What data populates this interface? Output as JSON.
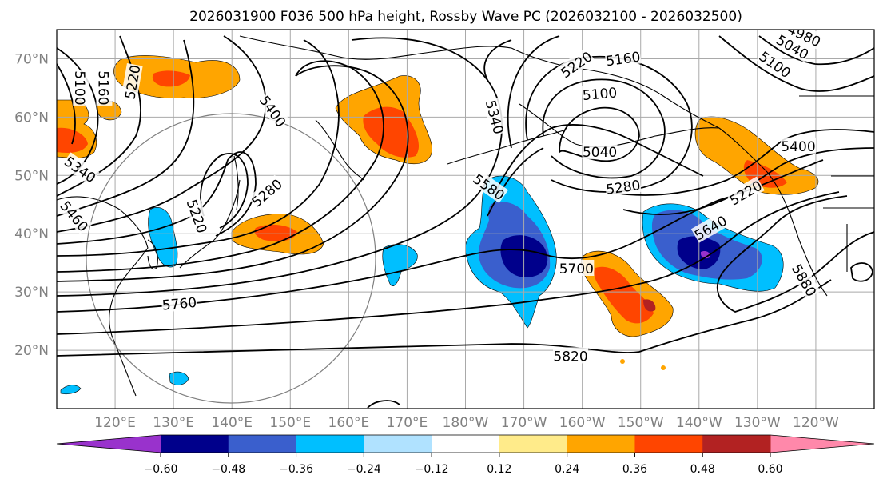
{
  "title": "2026031900 F036 500 hPa height, Rossby Wave PC (2026032100 - 2026032500)",
  "map": {
    "lon_range": [
      110,
      250
    ],
    "lat_range": [
      10,
      75
    ],
    "lat_labels": [
      {
        "lat": 70,
        "text": "70°N"
      },
      {
        "lat": 60,
        "text": "60°N"
      },
      {
        "lat": 50,
        "text": "50°N"
      },
      {
        "lat": 40,
        "text": "40°N"
      },
      {
        "lat": 30,
        "text": "30°N"
      },
      {
        "lat": 20,
        "text": "20°N"
      }
    ],
    "lon_labels": [
      {
        "lon": 120,
        "text": "120°E"
      },
      {
        "lon": 130,
        "text": "130°E"
      },
      {
        "lon": 140,
        "text": "140°E"
      },
      {
        "lon": 150,
        "text": "150°E"
      },
      {
        "lon": 160,
        "text": "160°E"
      },
      {
        "lon": 170,
        "text": "170°E"
      },
      {
        "lon": 180,
        "text": "180°W"
      },
      {
        "lon": 190,
        "text": "170°W"
      },
      {
        "lon": 200,
        "text": "160°W"
      },
      {
        "lon": 210,
        "text": "150°W"
      },
      {
        "lon": 220,
        "text": "140°W"
      },
      {
        "lon": 230,
        "text": "130°W"
      },
      {
        "lon": 240,
        "text": "120°W"
      }
    ]
  },
  "contours": {
    "units": "dam*10 (m)",
    "labels": [
      {
        "text": "5100",
        "lon": 114,
        "lat": 65,
        "rot": 90
      },
      {
        "text": "5160",
        "lon": 118,
        "lat": 65,
        "rot": 90
      },
      {
        "text": "5220",
        "lon": 123,
        "lat": 66,
        "rot": -80
      },
      {
        "text": "5400",
        "lon": 147,
        "lat": 61,
        "rot": 55
      },
      {
        "text": "5340",
        "lon": 114,
        "lat": 51,
        "rot": 35
      },
      {
        "text": "5460",
        "lon": 113,
        "lat": 43,
        "rot": 50
      },
      {
        "text": "5220",
        "lon": 134,
        "lat": 43,
        "rot": 70
      },
      {
        "text": "5280",
        "lon": 146,
        "lat": 47,
        "rot": -40
      },
      {
        "text": "5340",
        "lon": 185,
        "lat": 60,
        "rot": 75
      },
      {
        "text": "5220",
        "lon": 199,
        "lat": 69,
        "rot": -35
      },
      {
        "text": "5160",
        "lon": 207,
        "lat": 70,
        "rot": -8
      },
      {
        "text": "5100",
        "lon": 203,
        "lat": 64,
        "rot": -5
      },
      {
        "text": "5040",
        "lon": 203,
        "lat": 54,
        "rot": 0
      },
      {
        "text": "5280",
        "lon": 207,
        "lat": 48,
        "rot": -8
      },
      {
        "text": "5580",
        "lon": 184,
        "lat": 48,
        "rot": 35
      },
      {
        "text": "5640",
        "lon": 222,
        "lat": 41,
        "rot": -30
      },
      {
        "text": "5700",
        "lon": 199,
        "lat": 34,
        "rot": 0
      },
      {
        "text": "5760",
        "lon": 131,
        "lat": 28,
        "rot": -5
      },
      {
        "text": "5820",
        "lon": 198,
        "lat": 19,
        "rot": 0
      },
      {
        "text": "5880",
        "lon": 238,
        "lat": 32,
        "rot": 60
      },
      {
        "text": "5400",
        "lon": 237,
        "lat": 55,
        "rot": 0
      },
      {
        "text": "5100",
        "lon": 233,
        "lat": 69,
        "rot": 35
      },
      {
        "text": "5040",
        "lon": 236,
        "lat": 72,
        "rot": 30
      },
      {
        "text": "4980",
        "lon": 238,
        "lat": 74,
        "rot": 25
      },
      {
        "text": "5220",
        "lon": 228,
        "lat": 47,
        "rot": -30
      }
    ]
  },
  "colorbar": {
    "boundaries": [
      -0.72,
      -0.6,
      -0.48,
      -0.36,
      -0.24,
      -0.12,
      0.12,
      0.24,
      0.36,
      0.48,
      0.6,
      0.72
    ],
    "colors": [
      "#9932cc",
      "#00008b",
      "#3a5fcd",
      "#00bfff",
      "#b0e2ff",
      "#ffffff",
      "#ffeb8a",
      "#ffa500",
      "#ff4500",
      "#b22222",
      "#ff88aa"
    ],
    "tick_labels": [
      {
        "value": -0.6,
        "text": "−0.60"
      },
      {
        "value": -0.48,
        "text": "−0.48"
      },
      {
        "value": -0.36,
        "text": "−0.36"
      },
      {
        "value": -0.24,
        "text": "−0.24"
      },
      {
        "value": -0.12,
        "text": "−0.12"
      },
      {
        "value": 0.12,
        "text": "0.12"
      },
      {
        "value": 0.24,
        "text": "0.24"
      },
      {
        "value": 0.36,
        "text": "0.36"
      },
      {
        "value": 0.48,
        "text": "0.48"
      },
      {
        "value": 0.6,
        "text": "0.60"
      }
    ]
  }
}
